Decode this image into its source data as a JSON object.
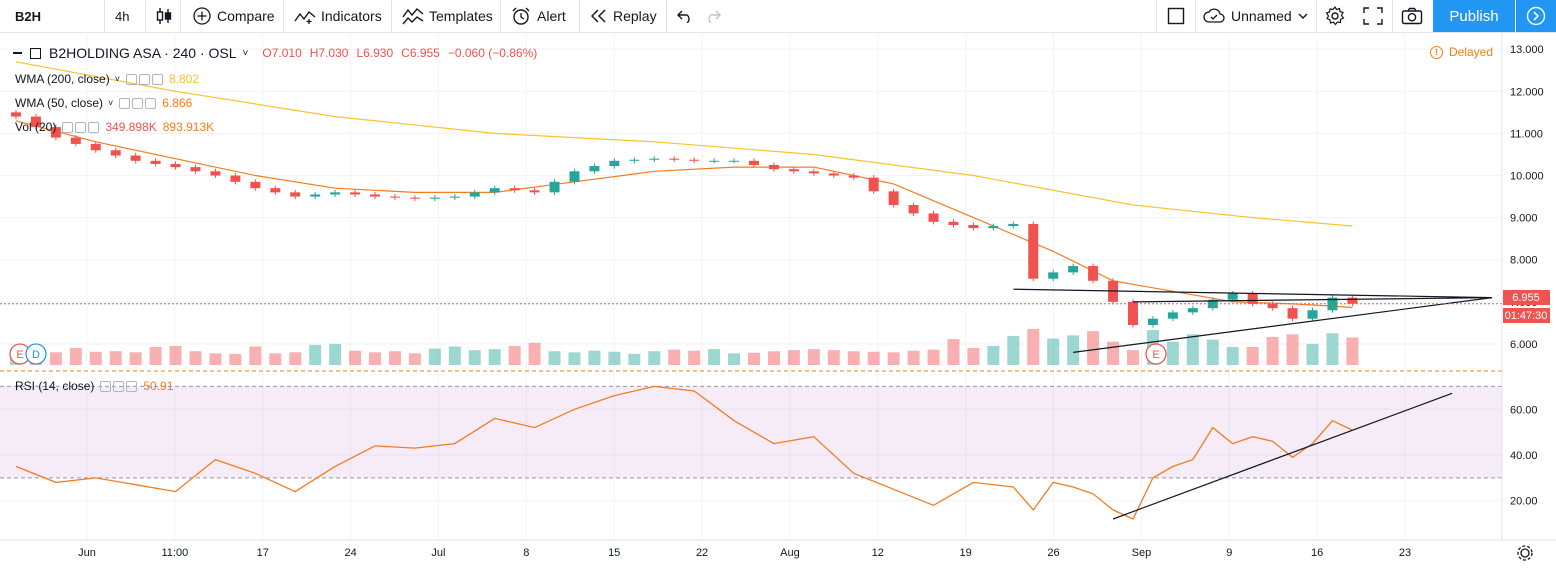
{
  "toolbar": {
    "symbol": "B2H",
    "interval": "4h",
    "compare": "Compare",
    "indicators": "Indicators",
    "templates": "Templates",
    "alert": "Alert",
    "replay": "Replay",
    "layout_name": "Unnamed",
    "publish": "Publish"
  },
  "legend": {
    "title": "B2HOLDING ASA · 240 · OSL",
    "open": "O7.010",
    "high": "H7.030",
    "low": "L6.930",
    "close": "C6.955",
    "change": "−0.060 (−0.86%)",
    "wma200": {
      "label": "WMA (200, close)",
      "value": "8.802"
    },
    "wma50": {
      "label": "WMA (50, close)",
      "value": "6.866"
    },
    "vol": {
      "label": "Vol (20)",
      "value1": "349.898K",
      "value2": "893.913K"
    },
    "rsi": {
      "label": "RSI (14, close)",
      "value": "50.91"
    }
  },
  "status": {
    "delayed": "Delayed",
    "last_price": "6.955",
    "countdown": "01:47:30"
  },
  "markers": {
    "earnings": "E",
    "dividend": "D"
  },
  "chart_data": {
    "type": "line",
    "title": "B2HOLDING ASA · 240 · OSL",
    "price_axis": {
      "ylim": [
        5.5,
        13.1
      ],
      "ticks": [
        "13.000",
        "12.000",
        "11.000",
        "10.000",
        "9.000",
        "8.000",
        "7.000",
        "6.000"
      ]
    },
    "rsi_axis": {
      "ylim": [
        5,
        75
      ],
      "ticks": [
        "60.00",
        "40.00",
        "20.00"
      ],
      "band": [
        30,
        70
      ]
    },
    "x_ticks": [
      "Jun",
      "11:00",
      "17",
      "24",
      "Jul",
      "8",
      "15",
      "22",
      "Aug",
      "12",
      "19",
      "26",
      "Sep",
      "9",
      "16",
      "23"
    ],
    "price_series": [
      {
        "name": "Price",
        "points": [
          [
            0,
            11.4
          ],
          [
            2,
            10.9
          ],
          [
            4,
            10.6
          ],
          [
            6,
            10.35
          ],
          [
            8,
            10.2
          ],
          [
            10,
            10.0
          ],
          [
            12,
            9.7
          ],
          [
            14,
            9.5
          ],
          [
            16,
            9.6
          ],
          [
            18,
            9.5
          ],
          [
            20,
            9.45
          ],
          [
            22,
            9.5
          ],
          [
            24,
            9.7
          ],
          [
            26,
            9.6
          ],
          [
            28,
            10.1
          ],
          [
            30,
            10.35
          ],
          [
            32,
            10.4
          ],
          [
            34,
            10.35
          ],
          [
            36,
            10.35
          ],
          [
            38,
            10.15
          ],
          [
            40,
            10.05
          ],
          [
            42,
            9.95
          ],
          [
            44,
            9.3
          ],
          [
            46,
            8.9
          ],
          [
            48,
            8.75
          ],
          [
            50,
            8.85
          ],
          [
            51,
            7.55
          ],
          [
            52,
            7.7
          ],
          [
            53,
            7.85
          ],
          [
            54,
            7.5
          ],
          [
            55,
            7.0
          ],
          [
            56,
            6.45
          ],
          [
            57,
            6.6
          ],
          [
            58,
            6.75
          ],
          [
            59,
            6.85
          ],
          [
            60,
            7.05
          ],
          [
            61,
            7.2
          ],
          [
            62,
            6.95
          ],
          [
            63,
            6.85
          ],
          [
            64,
            6.6
          ],
          [
            65,
            6.8
          ],
          [
            66,
            7.1
          ],
          [
            67,
            6.955
          ]
        ]
      },
      {
        "name": "WMA (50, close)",
        "points": [
          [
            0,
            11.3
          ],
          [
            4,
            10.8
          ],
          [
            8,
            10.4
          ],
          [
            12,
            10.0
          ],
          [
            16,
            9.7
          ],
          [
            20,
            9.6
          ],
          [
            24,
            9.6
          ],
          [
            28,
            9.85
          ],
          [
            32,
            10.1
          ],
          [
            36,
            10.2
          ],
          [
            40,
            10.2
          ],
          [
            44,
            9.8
          ],
          [
            48,
            9.0
          ],
          [
            52,
            8.2
          ],
          [
            55,
            7.5
          ],
          [
            58,
            7.25
          ],
          [
            61,
            7.0
          ],
          [
            64,
            6.95
          ],
          [
            66,
            6.9
          ],
          [
            67,
            6.866
          ]
        ]
      },
      {
        "name": "WMA (200, close)",
        "points": [
          [
            0,
            12.7
          ],
          [
            8,
            12.0
          ],
          [
            16,
            11.4
          ],
          [
            24,
            11.0
          ],
          [
            32,
            10.8
          ],
          [
            40,
            10.5
          ],
          [
            48,
            10.0
          ],
          [
            56,
            9.3
          ],
          [
            62,
            9.0
          ],
          [
            67,
            8.802
          ]
        ]
      }
    ],
    "volume": [
      22,
      31,
      24,
      32,
      25,
      26,
      24,
      34,
      36,
      26,
      22,
      21,
      35,
      22,
      24,
      38,
      40,
      27,
      24,
      26,
      22,
      31,
      35,
      28,
      30,
      36,
      42,
      26,
      24,
      27,
      25,
      21,
      26,
      29,
      27,
      30,
      22,
      23,
      26,
      28,
      30,
      28,
      26,
      25,
      24,
      27,
      29,
      49,
      32,
      36,
      55,
      68,
      50,
      56,
      64,
      44,
      28,
      66,
      44,
      58,
      48,
      34,
      34,
      53,
      58,
      40,
      60,
      52
    ],
    "rsi_series": [
      {
        "name": "RSI (14, close)",
        "points": [
          [
            0,
            35
          ],
          [
            2,
            28
          ],
          [
            4,
            30
          ],
          [
            6,
            27
          ],
          [
            8,
            24
          ],
          [
            10,
            38
          ],
          [
            12,
            32
          ],
          [
            14,
            24
          ],
          [
            16,
            35
          ],
          [
            18,
            44
          ],
          [
            20,
            43
          ],
          [
            22,
            45
          ],
          [
            24,
            56
          ],
          [
            26,
            52
          ],
          [
            28,
            60
          ],
          [
            30,
            66
          ],
          [
            32,
            70
          ],
          [
            34,
            68
          ],
          [
            36,
            55
          ],
          [
            38,
            45
          ],
          [
            40,
            48
          ],
          [
            42,
            32
          ],
          [
            44,
            25
          ],
          [
            46,
            18
          ],
          [
            48,
            28
          ],
          [
            50,
            26
          ],
          [
            51,
            16
          ],
          [
            52,
            28
          ],
          [
            53,
            26
          ],
          [
            54,
            23
          ],
          [
            55,
            16
          ],
          [
            56,
            12
          ],
          [
            57,
            30
          ],
          [
            58,
            35
          ],
          [
            59,
            38
          ],
          [
            60,
            52
          ],
          [
            61,
            45
          ],
          [
            62,
            48
          ],
          [
            63,
            46
          ],
          [
            64,
            39
          ],
          [
            65,
            45
          ],
          [
            66,
            55
          ],
          [
            67,
            50.91
          ]
        ]
      }
    ],
    "trendlines": [
      {
        "pane": "price",
        "from": [
          56,
          7.0
        ],
        "to": [
          74,
          7.1
        ]
      },
      {
        "pane": "price",
        "from": [
          50,
          7.3
        ],
        "to": [
          74,
          7.1
        ]
      },
      {
        "pane": "price",
        "from": [
          53,
          5.8
        ],
        "to": [
          74,
          7.1
        ]
      },
      {
        "pane": "rsi",
        "from": [
          55,
          12
        ],
        "to": [
          72,
          67
        ]
      }
    ]
  }
}
